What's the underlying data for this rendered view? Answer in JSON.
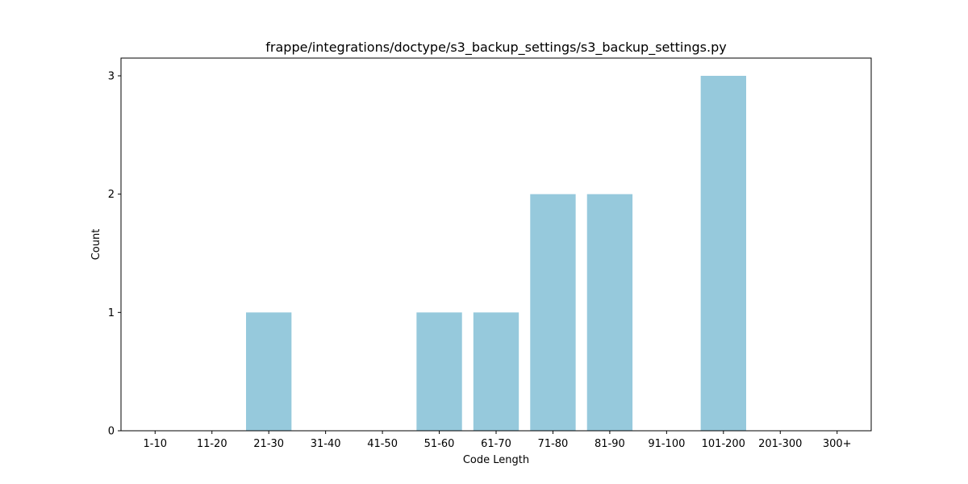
{
  "chart_data": {
    "type": "bar",
    "title": "frappe/integrations/doctype/s3_backup_settings/s3_backup_settings.py",
    "xlabel": "Code Length",
    "ylabel": "Count",
    "categories": [
      "1-10",
      "11-20",
      "21-30",
      "31-40",
      "41-50",
      "51-60",
      "61-70",
      "71-80",
      "81-90",
      "91-100",
      "101-200",
      "201-300",
      "300+"
    ],
    "values": [
      0,
      0,
      1,
      0,
      0,
      1,
      1,
      2,
      2,
      0,
      3,
      0,
      0
    ],
    "yticks": [
      0,
      1,
      2,
      3
    ],
    "ylim": [
      0,
      3.15
    ],
    "bar_color": "#96c9dc",
    "grid": false,
    "legend": "none"
  }
}
